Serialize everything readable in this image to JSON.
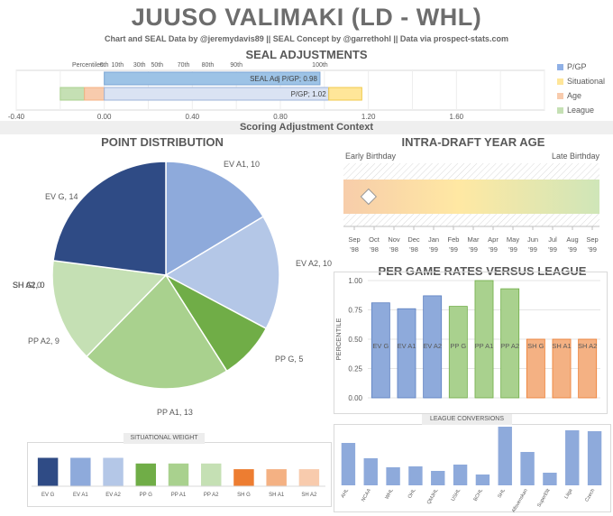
{
  "header": {
    "title": "JUUSO VALIMAKI (LD - WHL)",
    "subtitle": "Chart and SEAL Data by @jeremydavis89 || SEAL Concept by @garrethohl || Data via prospect-stats.com"
  },
  "seal": {
    "title": "SEAL ADJUSTMENTS",
    "percentiles_label": "Percentiles:",
    "percentile_ticks": [
      {
        "label": "0th",
        "value": 0.0
      },
      {
        "label": "10th",
        "value": 0.06
      },
      {
        "label": "30th",
        "value": 0.16
      },
      {
        "label": "50th",
        "value": 0.24
      },
      {
        "label": "70th",
        "value": 0.36
      },
      {
        "label": "80th",
        "value": 0.47
      },
      {
        "label": "90th",
        "value": 0.6
      },
      {
        "label": "100th",
        "value": 0.98
      }
    ],
    "axis_ticks": [
      "-0.40",
      "0.00",
      "0.40",
      "0.80",
      "1.20",
      "1.60"
    ],
    "xlim": [
      -0.4,
      2.0
    ],
    "adj_bar": {
      "label": "SEAL Adj P/GP; 0.98",
      "value": 0.98
    },
    "pgp_bar": {
      "label": "P/GP; 1.02",
      "value": 1.02
    },
    "situational": {
      "from": 1.02,
      "to": 1.17
    },
    "age": {
      "from": -0.09,
      "to": 0.0
    },
    "league": {
      "from": -0.2,
      "to": -0.09
    },
    "legend": [
      {
        "label": "P/GP",
        "color": "#8fb0e6"
      },
      {
        "label": "Situational",
        "color": "#ffe699"
      },
      {
        "label": "Age",
        "color": "#f8cbad"
      },
      {
        "label": "League",
        "color": "#c5e0b4"
      }
    ],
    "context_label": "Scoring Adjustment Context"
  },
  "point_distribution": {
    "title": "POINT DISTRIBUTION",
    "chart_data": {
      "type": "pie",
      "slices": [
        {
          "label": "EV A1, 10",
          "value": 10,
          "color": "#8eaadb"
        },
        {
          "label": "EV A2, 10",
          "value": 10,
          "color": "#b4c7e7"
        },
        {
          "label": "PP G, 5",
          "value": 5,
          "color": "#70ad47"
        },
        {
          "label": "PP A1, 13",
          "value": 13,
          "color": "#a9d18e"
        },
        {
          "label": "PP A2, 9",
          "value": 9,
          "color": "#c5e0b4"
        },
        {
          "label": "SH G, 0",
          "value": 0,
          "color": "#ed7d31"
        },
        {
          "label": "SH A1, 0",
          "value": 0,
          "color": "#f4b183"
        },
        {
          "label": "SH A2, 0",
          "value": 0,
          "color": "#f8cbad"
        },
        {
          "label": "EV G, 14",
          "value": 14,
          "color": "#2f4b85"
        }
      ]
    }
  },
  "situational_weight": {
    "title": "SITUATIONAL  WEIGHT",
    "chart_data": {
      "type": "bar",
      "categories": [
        "EV G",
        "EV A1",
        "EV A2",
        "PP G",
        "PP A1",
        "PP A2",
        "SH G",
        "SH A1",
        "SH A2"
      ],
      "values": [
        1.0,
        1.0,
        1.0,
        0.8,
        0.8,
        0.8,
        0.6,
        0.6,
        0.6
      ],
      "colors": [
        "#2f4b85",
        "#8eaadb",
        "#b4c7e7",
        "#70ad47",
        "#a9d18e",
        "#c5e0b4",
        "#ed7d31",
        "#f4b183",
        "#f8cbad"
      ]
    }
  },
  "draft_age": {
    "title": "INTRA-DRAFT YEAR AGE",
    "early_label": "Early Birthday",
    "late_label": "Late Birthday",
    "months": [
      [
        "Sep",
        "'98"
      ],
      [
        "Oct",
        "'98"
      ],
      [
        "Nov",
        "'98"
      ],
      [
        "Dec",
        "'98"
      ],
      [
        "Jan",
        "'99"
      ],
      [
        "Feb",
        "'99"
      ],
      [
        "Mar",
        "'99"
      ],
      [
        "Apr",
        "'99"
      ],
      [
        "May",
        "'99"
      ],
      [
        "Jun",
        "'99"
      ],
      [
        "Jul",
        "'99"
      ],
      [
        "Aug",
        "'99"
      ],
      [
        "Sep",
        "'99"
      ]
    ],
    "marker_position": 0.06
  },
  "per_game": {
    "title": "PER GAME RATES VERSUS  LEAGUE",
    "chart_data": {
      "type": "bar",
      "categories": [
        "EV G",
        "EV A1",
        "EV A2",
        "PP G",
        "PP A1",
        "PP A2",
        "SH G",
        "SH A1",
        "SH A2"
      ],
      "values": [
        0.81,
        0.76,
        0.87,
        0.78,
        1.0,
        0.93,
        0.5,
        0.5,
        0.5
      ],
      "colors": [
        "#8eaadb",
        "#8eaadb",
        "#8eaadb",
        "#a9d18e",
        "#a9d18e",
        "#a9d18e",
        "#f4b183",
        "#f4b183",
        "#f4b183"
      ],
      "ylabel": "PERCENTILE",
      "yticks": [
        "1.00",
        "0.75",
        "0.50",
        "0.25",
        "0.00"
      ],
      "ylim": [
        0,
        1
      ]
    }
  },
  "league_conversions": {
    "title": "LEAGUE CONVERSIONS",
    "chart_data": {
      "type": "bar",
      "categories": [
        "AHL",
        "NCAA",
        "WHL",
        "OHL",
        "QMJHL",
        "USHL",
        "BCHL",
        "SHL",
        "Allsvenskan",
        "SuperElit",
        "Liiga",
        "Czech"
      ],
      "values": [
        0.47,
        0.3,
        0.2,
        0.21,
        0.16,
        0.23,
        0.12,
        0.65,
        0.37,
        0.14,
        0.61,
        0.6
      ],
      "color": "#8eaadb"
    }
  }
}
